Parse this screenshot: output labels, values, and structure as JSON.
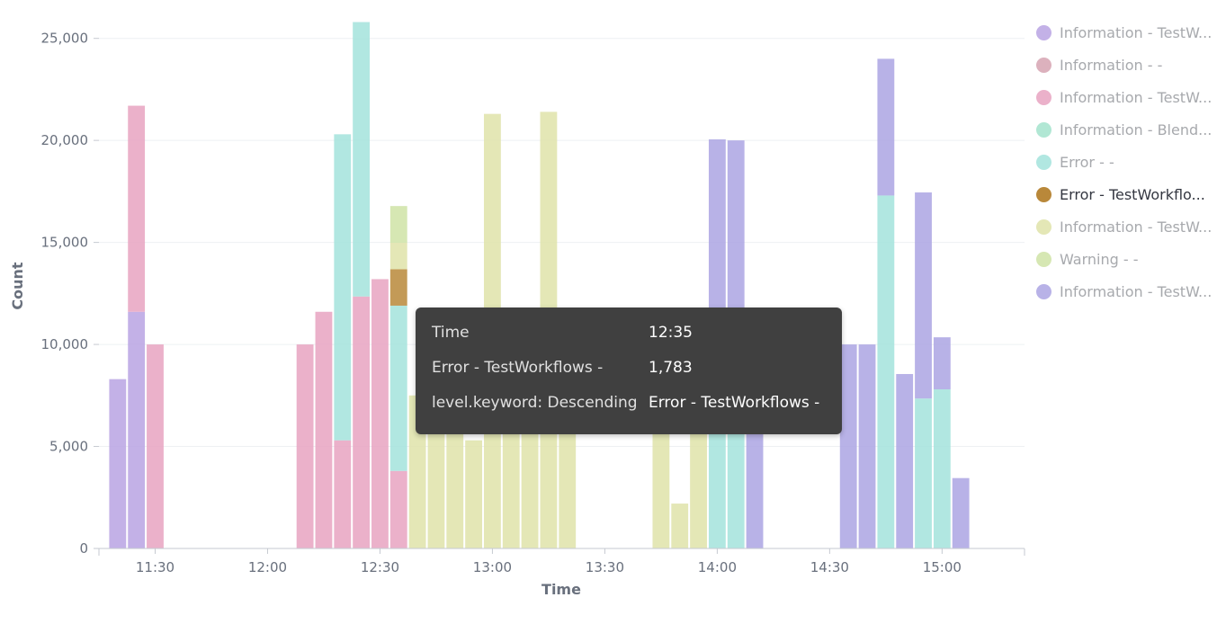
{
  "chart_data": {
    "type": "bar",
    "stacked": true,
    "xlabel": "Time",
    "ylabel": "Count",
    "ylim": [
      0,
      26000
    ],
    "y_ticks": [
      0,
      5000,
      10000,
      15000,
      20000,
      25000
    ],
    "y_tick_labels": [
      "0",
      "5,000",
      "10,000",
      "15,000",
      "20,000",
      "25,000"
    ],
    "x_range_minutes": [
      675,
      922
    ],
    "bar_interval_minutes": 5,
    "x_ticks": [
      {
        "minute": 690,
        "label": "11:30"
      },
      {
        "minute": 720,
        "label": "12:00"
      },
      {
        "minute": 750,
        "label": "12:30"
      },
      {
        "minute": 780,
        "label": "13:00"
      },
      {
        "minute": 810,
        "label": "13:30"
      },
      {
        "minute": 840,
        "label": "14:00"
      },
      {
        "minute": 870,
        "label": "14:30"
      },
      {
        "minute": 900,
        "label": "15:00"
      }
    ],
    "series": [
      {
        "name": "Information - TestWorkflows - A",
        "legend_label": "Information - TestW...",
        "color": "#b9a3e3",
        "opacity": 0.85,
        "active": false
      },
      {
        "name": "Information - -",
        "legend_label": "Information - -",
        "color": "#d6a3b1",
        "opacity": 0.85,
        "active": false
      },
      {
        "name": "Information - TestWorkflows - B",
        "legend_label": "Information - TestW...",
        "color": "#e7a3c1",
        "opacity": 0.85,
        "active": false
      },
      {
        "name": "Information - Blender",
        "legend_label": "Information - Blend...",
        "color": "#a3e3cc",
        "opacity": 0.85,
        "active": false
      },
      {
        "name": "Error - -",
        "legend_label": "Error - -",
        "color": "#a3e3dc",
        "opacity": 0.85,
        "active": false
      },
      {
        "name": "Error - TestWorkflows -",
        "legend_label": "Error - TestWorkflo...",
        "color": "#b9883a",
        "opacity": 0.85,
        "active": true
      },
      {
        "name": "Information - TestWorkflows - C",
        "legend_label": "Information - TestW...",
        "color": "#dfe3a9",
        "opacity": 0.85,
        "active": false
      },
      {
        "name": "Warning - -",
        "legend_label": "Warning - -",
        "color": "#cfe3a6",
        "opacity": 0.85,
        "active": false
      },
      {
        "name": "Information - TestWorkflows - D",
        "legend_label": "Information - TestW...",
        "color": "#aca5e3",
        "opacity": 0.85,
        "active": false
      }
    ],
    "bars": [
      {
        "minute": 680,
        "segments": [
          {
            "s": 0,
            "v": 8300
          }
        ]
      },
      {
        "minute": 685,
        "segments": [
          {
            "s": 0,
            "v": 11600
          },
          {
            "s": 2,
            "v": 10100
          }
        ]
      },
      {
        "minute": 690,
        "segments": [
          {
            "s": 2,
            "v": 10000
          }
        ]
      },
      {
        "minute": 730,
        "segments": [
          {
            "s": 2,
            "v": 10000
          }
        ]
      },
      {
        "minute": 735,
        "segments": [
          {
            "s": 2,
            "v": 11600
          }
        ]
      },
      {
        "minute": 740,
        "segments": [
          {
            "s": 2,
            "v": 5300
          },
          {
            "s": 4,
            "v": 15000
          }
        ]
      },
      {
        "minute": 745,
        "segments": [
          {
            "s": 2,
            "v": 12350
          },
          {
            "s": 4,
            "v": 13450
          }
        ]
      },
      {
        "minute": 750,
        "segments": [
          {
            "s": 2,
            "v": 13200
          }
        ]
      },
      {
        "minute": 755,
        "segments": [
          {
            "s": 2,
            "v": 3800
          },
          {
            "s": 4,
            "v": 8100
          },
          {
            "s": 5,
            "v": 1783
          },
          {
            "s": 6,
            "v": 1300
          },
          {
            "s": 7,
            "v": 1800
          }
        ]
      },
      {
        "minute": 760,
        "segments": [
          {
            "s": 6,
            "v": 7500
          }
        ]
      },
      {
        "minute": 765,
        "segments": [
          {
            "s": 6,
            "v": 7500
          }
        ]
      },
      {
        "minute": 770,
        "segments": [
          {
            "s": 6,
            "v": 5700
          }
        ]
      },
      {
        "minute": 775,
        "segments": [
          {
            "s": 6,
            "v": 5300
          }
        ]
      },
      {
        "minute": 780,
        "segments": [
          {
            "s": 6,
            "v": 21300
          }
        ]
      },
      {
        "minute": 785,
        "segments": [
          {
            "s": 6,
            "v": 7000
          }
        ]
      },
      {
        "minute": 790,
        "segments": [
          {
            "s": 6,
            "v": 6900
          }
        ]
      },
      {
        "minute": 795,
        "segments": [
          {
            "s": 6,
            "v": 21400
          }
        ]
      },
      {
        "minute": 800,
        "segments": [
          {
            "s": 6,
            "v": 6900
          }
        ]
      },
      {
        "minute": 825,
        "segments": [
          {
            "s": 6,
            "v": 6500
          }
        ]
      },
      {
        "minute": 830,
        "segments": [
          {
            "s": 6,
            "v": 2200
          }
        ]
      },
      {
        "minute": 835,
        "segments": [
          {
            "s": 6,
            "v": 6600
          }
        ]
      },
      {
        "minute": 840,
        "segments": [
          {
            "s": 4,
            "v": 6500
          },
          {
            "s": 8,
            "v": 13550
          }
        ]
      },
      {
        "minute": 845,
        "segments": [
          {
            "s": 4,
            "v": 6500
          },
          {
            "s": 8,
            "v": 13500
          }
        ]
      },
      {
        "minute": 850,
        "segments": [
          {
            "s": 8,
            "v": 6200
          }
        ]
      },
      {
        "minute": 875,
        "segments": [
          {
            "s": 8,
            "v": 10000
          }
        ]
      },
      {
        "minute": 880,
        "segments": [
          {
            "s": 8,
            "v": 10000
          }
        ]
      },
      {
        "minute": 885,
        "segments": [
          {
            "s": 4,
            "v": 17300
          },
          {
            "s": 8,
            "v": 6700
          }
        ]
      },
      {
        "minute": 890,
        "segments": [
          {
            "s": 8,
            "v": 8550
          }
        ]
      },
      {
        "minute": 895,
        "segments": [
          {
            "s": 4,
            "v": 7350
          },
          {
            "s": 8,
            "v": 10100
          }
        ]
      },
      {
        "minute": 900,
        "segments": [
          {
            "s": 4,
            "v": 7800
          },
          {
            "s": 8,
            "v": 2550
          }
        ]
      },
      {
        "minute": 905,
        "segments": [
          {
            "s": 8,
            "v": 3450
          }
        ]
      }
    ]
  },
  "tooltip": {
    "rows": [
      {
        "key": "Time",
        "value": "12:35"
      },
      {
        "key": "Error - TestWorkflows -",
        "value": "1,783"
      },
      {
        "key": "level.keyword: Descending",
        "value": "Error - TestWorkflows -"
      }
    ]
  }
}
